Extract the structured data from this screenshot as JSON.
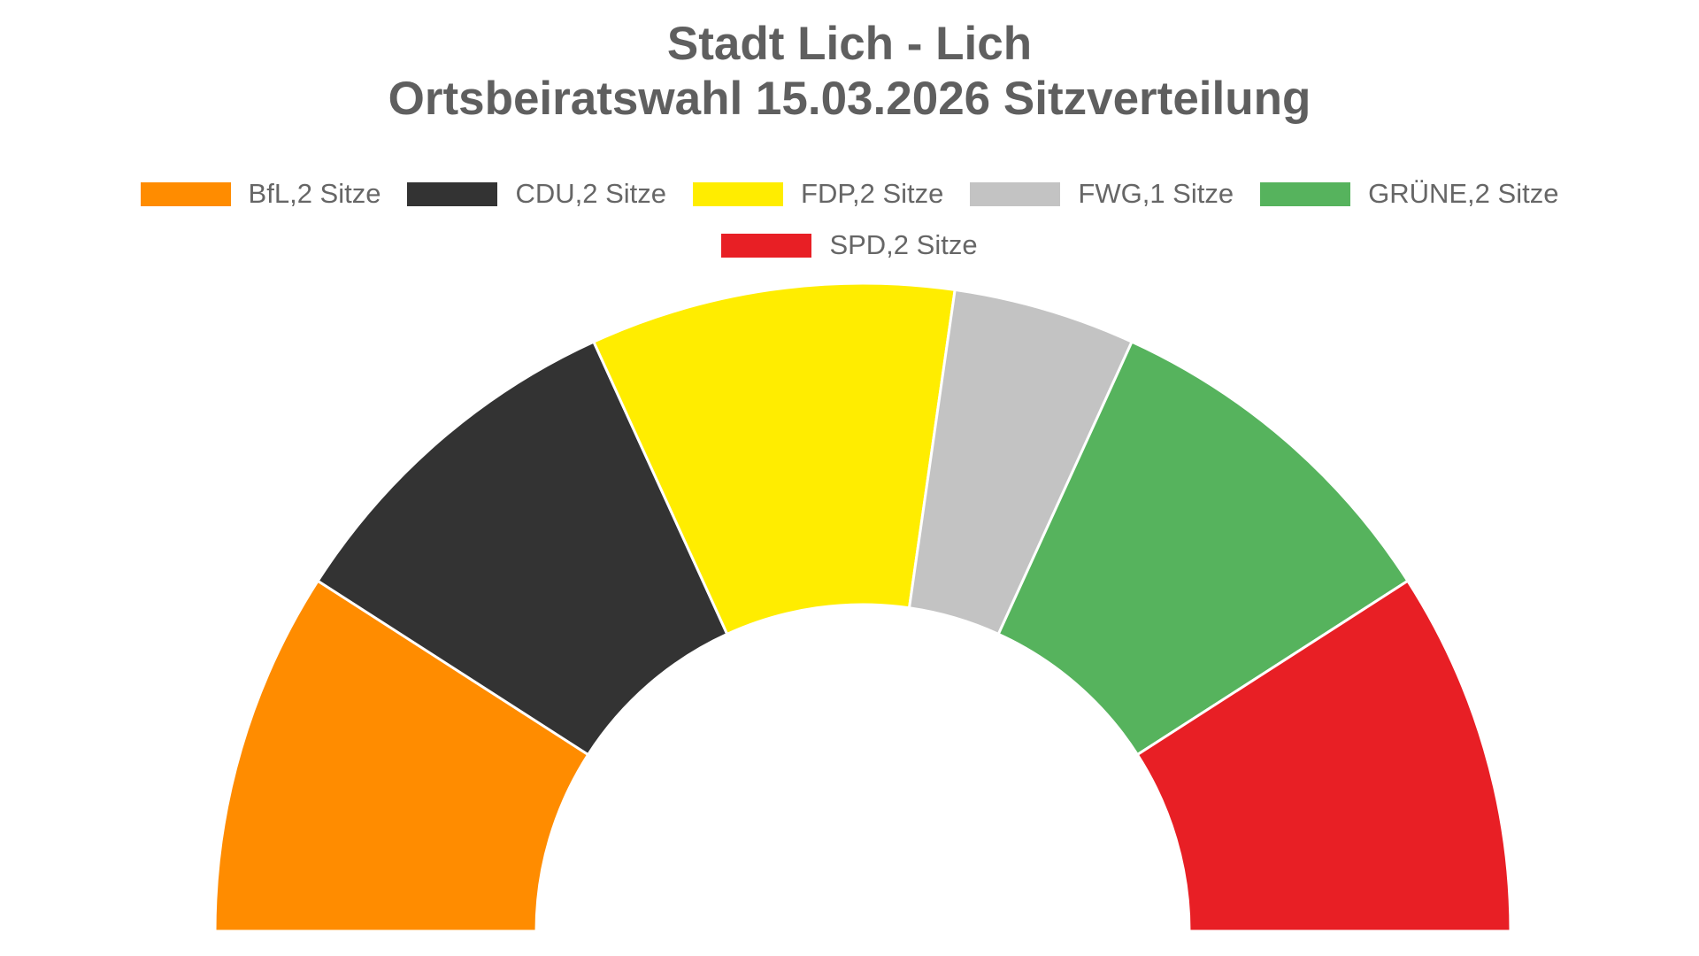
{
  "title": {
    "line1": "Stadt Lich - Lich",
    "line2": "Ortsbeiratswahl 15.03.2026 Sitzverteilung"
  },
  "legend": [
    {
      "label": "BfL,2 Sitze",
      "color": "#ff8c00"
    },
    {
      "label": "CDU,2 Sitze",
      "color": "#333333"
    },
    {
      "label": "FDP,2 Sitze",
      "color": "#ffed00"
    },
    {
      "label": "FWG,1 Sitze",
      "color": "#c3c3c3"
    },
    {
      "label": "GRÜNE,2 Sitze",
      "color": "#56b35d"
    },
    {
      "label": "SPD,2 Sitze",
      "color": "#e81f25"
    }
  ],
  "chart_data": {
    "type": "pie",
    "subtype": "semicircle-donut (parliament seat distribution)",
    "title": "Stadt Lich - Lich\nOrtsbeiratswahl 15.03.2026 Sitzverteilung",
    "categories": [
      "BfL",
      "CDU",
      "FDP",
      "FWG",
      "GRÜNE",
      "SPD"
    ],
    "values": [
      2,
      2,
      2,
      1,
      2,
      2
    ],
    "colors": [
      "#ff8c00",
      "#333333",
      "#ffed00",
      "#c3c3c3",
      "#56b35d",
      "#e81f25"
    ],
    "unit": "Sitze",
    "total": 11,
    "legend_position": "top",
    "start_angle_deg": 180,
    "end_angle_deg": 0
  }
}
